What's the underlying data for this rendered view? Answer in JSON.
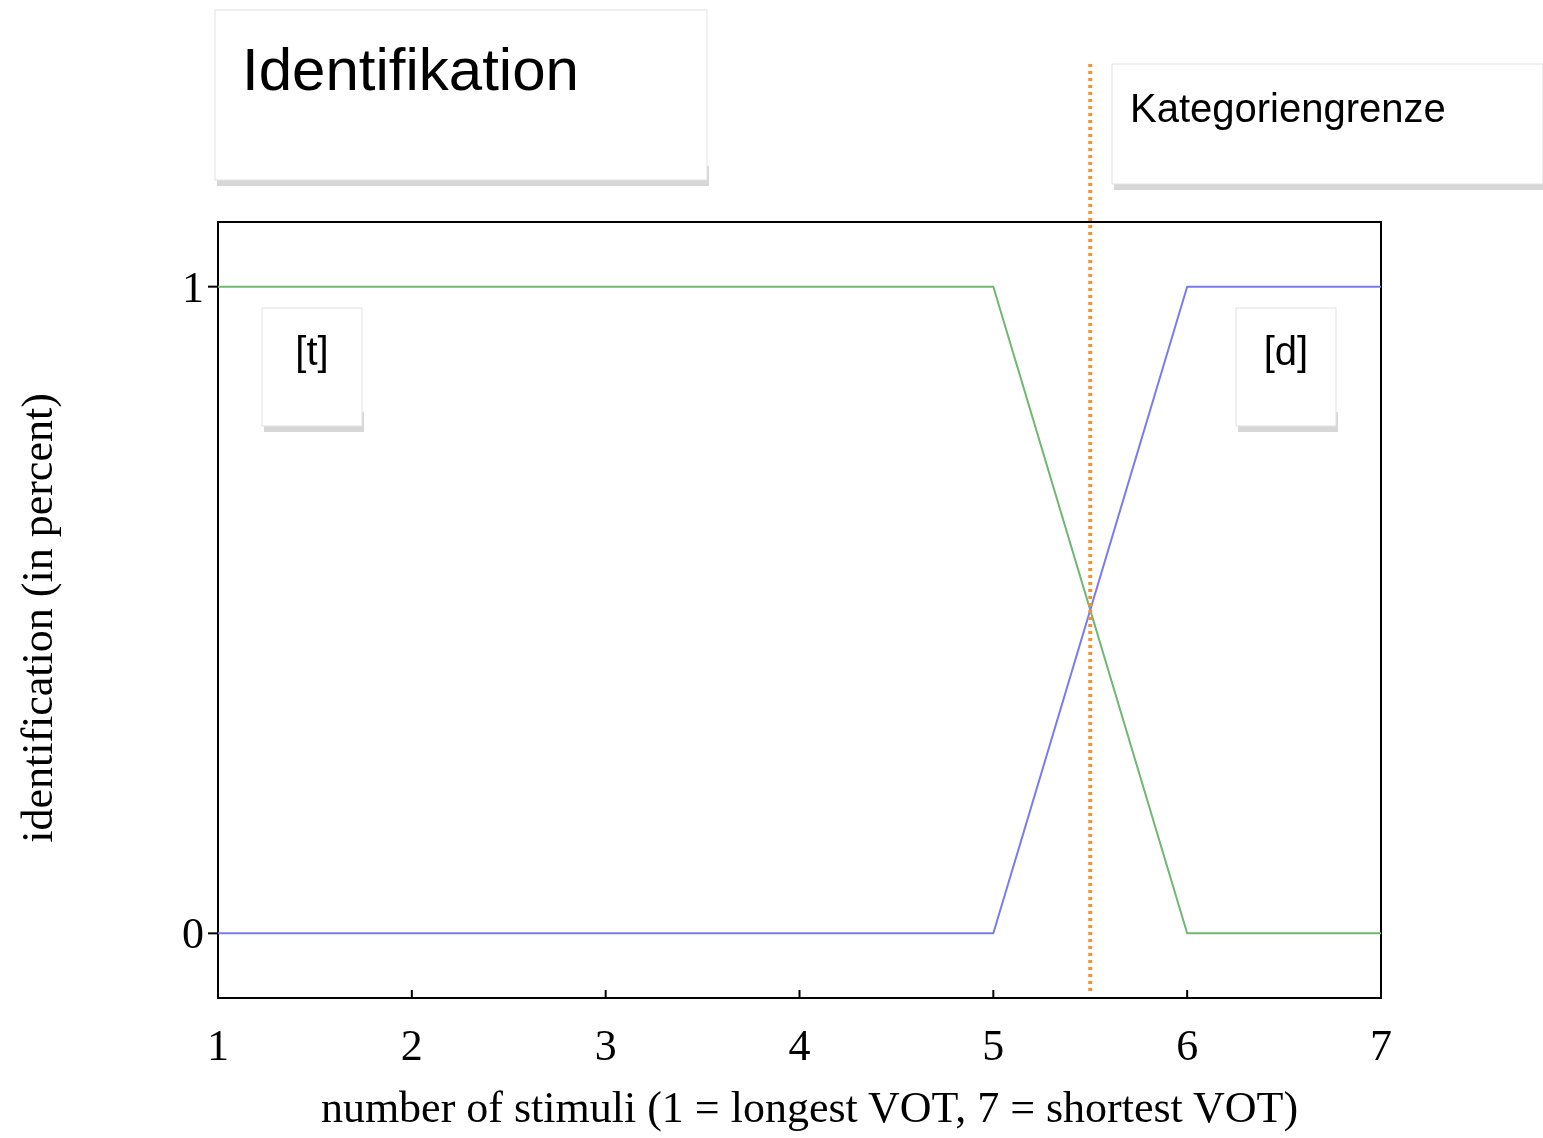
{
  "chart_data": {
    "type": "line",
    "title": "Identifikation",
    "xlabel": "number of stimuli (1 = longest VOT, 7 = shortest VOT)",
    "ylabel": "identification (in percent)",
    "x": [
      1,
      2,
      3,
      4,
      5,
      6,
      7
    ],
    "series": [
      {
        "color": "#6fb86f",
        "values": [
          1,
          1,
          1,
          1,
          1,
          0,
          0
        ]
      },
      {
        "color": "#7b7bf0",
        "values": [
          0,
          0,
          0,
          0,
          0,
          1,
          1
        ]
      }
    ],
    "xlim": [
      1,
      7
    ],
    "xticks": [
      1,
      2,
      3,
      4,
      5,
      6,
      7
    ],
    "ylim": [
      -0.1,
      1.1
    ],
    "yticks": [
      0,
      1
    ],
    "ref_lines": [
      {
        "axis": "x",
        "value": 5.5,
        "label": "Kategoriengrenze",
        "color": "#f5922f",
        "line_style": "dotted"
      }
    ],
    "annotations": [
      "[t]",
      "[d]"
    ],
    "grid": false,
    "marker": "none",
    "line_style": "solid"
  }
}
